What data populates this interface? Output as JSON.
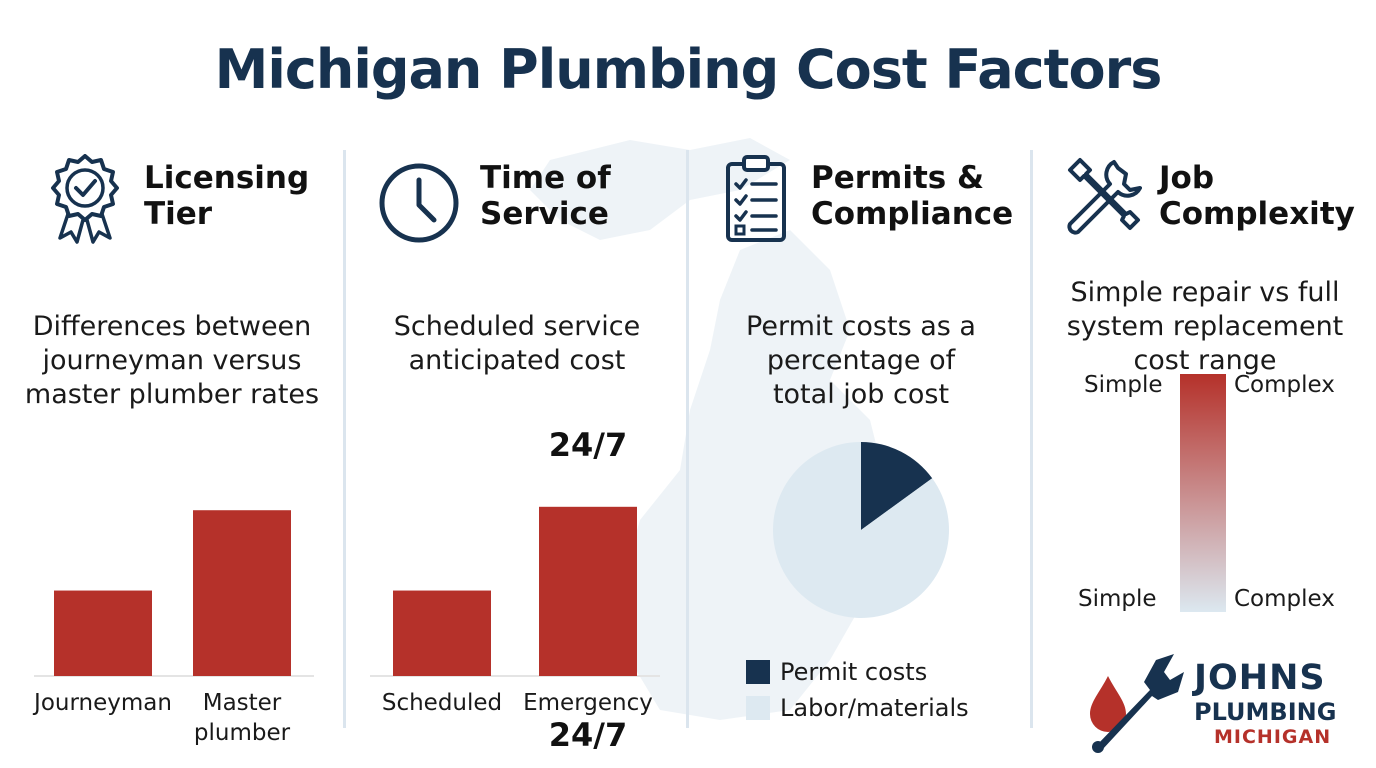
{
  "title": "Michigan Plumbing Cost Factors",
  "colors": {
    "navy": "#17324f",
    "red": "#b5312a",
    "pale": "#dde9f1"
  },
  "panels": [
    {
      "icon": "award-ribbon-icon",
      "heading_lines": [
        "Licensing",
        "Tier"
      ],
      "desc_lines": [
        "Differences between",
        "journeyman versus",
        "master plumber rates"
      ]
    },
    {
      "icon": "clock-icon",
      "heading_lines": [
        "Time of",
        "Service"
      ],
      "desc_lines": [
        "Scheduled service",
        "anticipated cost"
      ],
      "top_annotation": "24/7",
      "bottom_annotation": "24/7"
    },
    {
      "icon": "clipboard-checklist-icon",
      "heading_lines": [
        "Permits &",
        "Compliance"
      ],
      "desc_lines": [
        "Permit costs as a",
        "percentage of",
        "total job cost"
      ]
    },
    {
      "icon": "wrench-screwdriver-icon",
      "heading_lines": [
        "Job",
        "Complexity"
      ],
      "desc_lines": [
        "Simple repair vs full",
        "system replacement",
        "cost range"
      ]
    }
  ],
  "chart_data": [
    {
      "type": "bar",
      "categories": [
        "Journeyman",
        "Master plumber"
      ],
      "category_lines": [
        [
          "Journeyman"
        ],
        [
          "Master",
          "plumber"
        ]
      ],
      "values": [
        1,
        1.94
      ],
      "ylim": [
        0,
        2.2
      ]
    },
    {
      "type": "bar",
      "categories": [
        "Scheduled",
        "Emergency"
      ],
      "category_lines": [
        [
          "Scheduled"
        ],
        [
          "Emergency"
        ]
      ],
      "values": [
        1,
        1.98
      ],
      "ylim": [
        0,
        2.2
      ]
    },
    {
      "type": "pie",
      "labels": [
        "Permit costs",
        "Labor/materials"
      ],
      "values": [
        15,
        85
      ]
    },
    {
      "type": "bar",
      "labels_top": [
        "Simple",
        "Complex"
      ],
      "labels_bottom": [
        "Simple",
        "Complex"
      ]
    }
  ],
  "logo": {
    "line1": "JOHNS",
    "line2": "PLUMBING",
    "line3": "MICHIGAN"
  }
}
